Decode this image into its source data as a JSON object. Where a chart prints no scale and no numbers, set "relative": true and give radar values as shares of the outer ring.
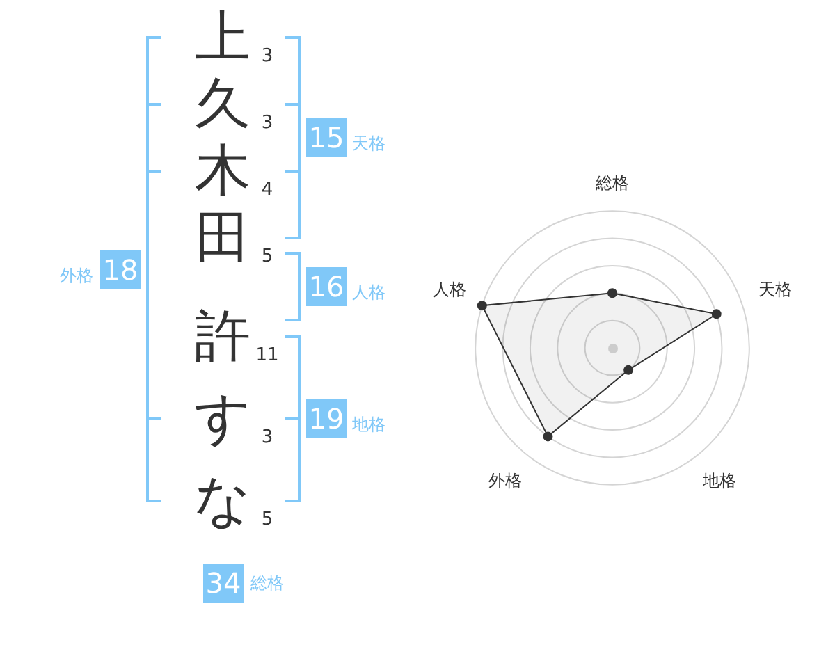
{
  "chart_data": [
    {
      "type": "other",
      "categories": [
        "上",
        "久",
        "木",
        "田",
        "許",
        "す",
        "な"
      ],
      "values": [
        3,
        3,
        4,
        5,
        11,
        3,
        5
      ],
      "data_labels": true
    },
    {
      "type": "other",
      "categories": [
        "天格",
        "人格",
        "地格",
        "外格",
        "総格"
      ],
      "values": [
        15,
        16,
        19,
        18,
        34
      ],
      "color": "#80c8f8",
      "data_labels": true
    },
    {
      "type": "radar",
      "categories": [
        "総格",
        "天格",
        "地格",
        "外格",
        "人格"
      ],
      "series": [
        {
          "color": "#333333",
          "values": [
            0.4,
            0.8,
            0.2,
            0.8,
            1
          ]
        }
      ],
      "relative": true,
      "marker": "circle",
      "grid": true
    }
  ]
}
